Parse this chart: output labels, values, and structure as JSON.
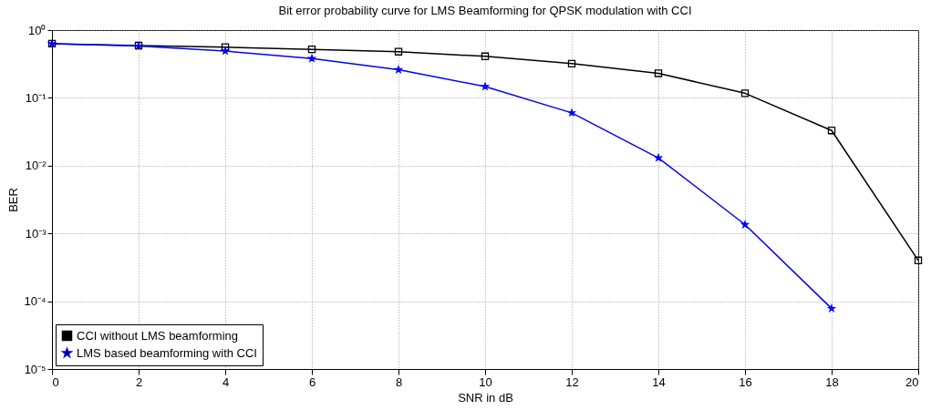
{
  "chart_data": {
    "type": "line",
    "title": "Bit error probability curve for LMS Beamforming for QPSK modulation with CCI",
    "xlabel": "SNR in dB",
    "ylabel": "BER",
    "x": [
      0,
      2,
      4,
      6,
      8,
      10,
      12,
      14,
      16,
      18,
      20
    ],
    "series": [
      {
        "name": "CCI without LMS beamforming",
        "color": "#000000",
        "marker": "square",
        "values": [
          0.63,
          0.59,
          0.56,
          0.52,
          0.48,
          0.41,
          0.32,
          0.23,
          0.117,
          0.033,
          0.0004
        ]
      },
      {
        "name": "LMS based beamforming with CCI",
        "color": "#0000ff",
        "marker": "star",
        "values": [
          0.63,
          0.58,
          0.49,
          0.38,
          0.26,
          0.147,
          0.06,
          0.013,
          0.00135,
          7.8e-05,
          null
        ]
      }
    ],
    "xlim": [
      0,
      20
    ],
    "xticks": [
      0,
      2,
      4,
      6,
      8,
      10,
      12,
      14,
      16,
      18,
      20
    ],
    "log": "y",
    "ylim": [
      1e-05,
      1
    ],
    "yticks": [
      {
        "value": 1e-05,
        "label": "10⁻⁵"
      },
      {
        "value": 0.0001,
        "label": "10⁻⁴"
      },
      {
        "value": 0.001,
        "label": "10⁻³"
      },
      {
        "value": 0.01,
        "label": "10⁻²"
      },
      {
        "value": 0.1,
        "label": "10⁻¹"
      },
      {
        "value": 1,
        "label": "10⁰"
      }
    ],
    "grid": true,
    "legend": "bottom left",
    "line_style": "solid"
  }
}
